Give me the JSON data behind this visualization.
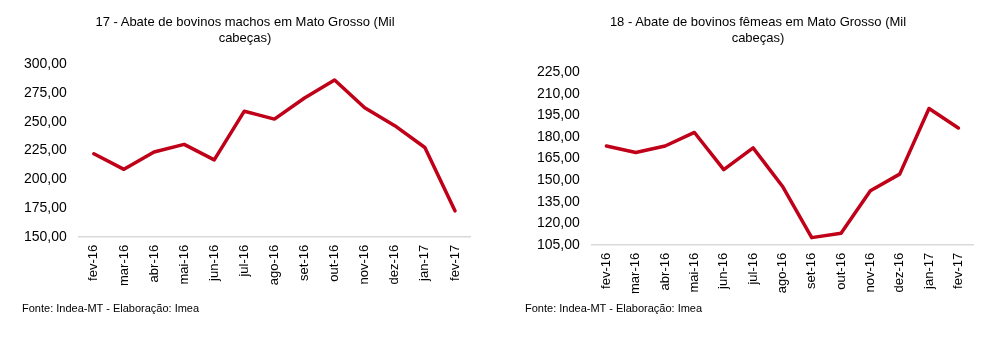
{
  "chart_data": [
    {
      "type": "line",
      "title": "17 - Abate de bovinos machos em Mato Grosso (Mil cabeças)",
      "categories": [
        "fev-16",
        "mar-16",
        "abr-16",
        "mai-16",
        "jun-16",
        "jul-16",
        "ago-16",
        "set-16",
        "out-16",
        "nov-16",
        "dez-16",
        "jan-17",
        "fev-17"
      ],
      "series": [
        {
          "color": "#c00018",
          "values": [
            222.3,
            208.7,
            223.8,
            230.4,
            216.9,
            259.3,
            252.4,
            270.8,
            286.4,
            262.3,
            246.7,
            227.7,
            172.6
          ]
        }
      ],
      "ylim": [
        150,
        300
      ],
      "yticks": [
        {
          "value": 150,
          "label": "150,00"
        },
        {
          "value": 175,
          "label": "175,00"
        },
        {
          "value": 200,
          "label": "200,00"
        },
        {
          "value": 225,
          "label": "225,00"
        },
        {
          "value": 250,
          "label": "250,00"
        },
        {
          "value": 275,
          "label": "275,00"
        },
        {
          "value": 300,
          "label": "300,00"
        }
      ],
      "grid": false,
      "legend": false,
      "marker": "none",
      "line_style": "solid",
      "annotations": [
        "Fonte: Indea-MT - Elaboração: Imea"
      ]
    },
    {
      "type": "line",
      "title": "18 - Abate de bovinos fêmeas em Mato Grosso (Mil cabeças)",
      "categories": [
        "fev-16",
        "mar-16",
        "abr-16",
        "mai-16",
        "jun-16",
        "jul-16",
        "ago-16",
        "set-16",
        "out-16",
        "nov-16",
        "dez-16",
        "jan-17",
        "fev-17"
      ],
      "series": [
        {
          "color": "#c00018",
          "values": [
            173.8,
            169.3,
            173.8,
            183.2,
            157.3,
            172.5,
            145.8,
            110.0,
            113.1,
            142.6,
            154.2,
            199.9,
            186.3
          ]
        }
      ],
      "ylim": [
        105,
        225
      ],
      "yticks": [
        {
          "value": 105,
          "label": "105,00"
        },
        {
          "value": 120,
          "label": "120,00"
        },
        {
          "value": 135,
          "label": "135,00"
        },
        {
          "value": 150,
          "label": "150,00"
        },
        {
          "value": 165,
          "label": "165,00"
        },
        {
          "value": 180,
          "label": "180,00"
        },
        {
          "value": 195,
          "label": "195,00"
        },
        {
          "value": 210,
          "label": "210,00"
        },
        {
          "value": 225,
          "label": "225,00"
        }
      ],
      "grid": false,
      "legend": false,
      "marker": "none",
      "line_style": "solid",
      "annotations": [
        "Fonte: Indea-MT - Elaboração: Imea"
      ]
    }
  ]
}
